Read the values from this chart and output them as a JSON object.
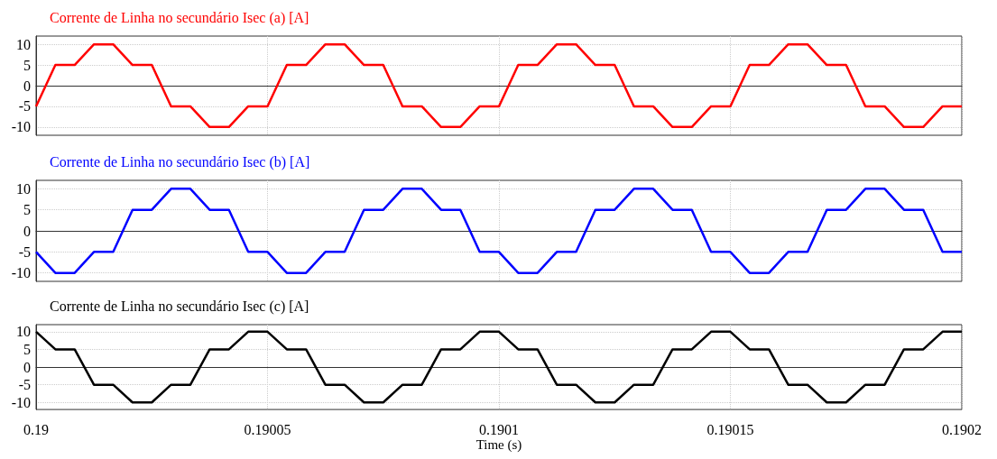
{
  "chart_data": [
    {
      "type": "line",
      "title": "Corrente de Linha no secundário Isec (a) [A]",
      "x": [
        0.19,
        0.1900041667,
        0.1900083333,
        0.1900125,
        0.1900166667,
        0.1900208333,
        0.190025,
        0.1900291667,
        0.1900333333,
        0.1900375,
        0.1900416667,
        0.1900458333,
        0.19005,
        0.1900541667,
        0.1900583333,
        0.1900625,
        0.1900666667,
        0.1900708333,
        0.190075,
        0.1900791667,
        0.1900833333,
        0.1900875,
        0.1900916667,
        0.1900958333,
        0.1901,
        0.1901041667,
        0.1901083333,
        0.1901125,
        0.1901166667,
        0.1901208333,
        0.190125,
        0.1901291667,
        0.1901333333,
        0.1901375,
        0.1901416667,
        0.1901458333,
        0.19015,
        0.1901541667,
        0.1901583333,
        0.1901625,
        0.1901666667,
        0.1901708333,
        0.190175,
        0.1901791667,
        0.1901833333,
        0.1901875,
        0.1901916667,
        0.1901958333,
        0.1902
      ],
      "series": [
        {
          "color": "#ff0000",
          "values": [
            -5,
            5,
            5,
            10,
            10,
            5,
            5,
            -5,
            -5,
            -10,
            -10,
            -5,
            -5,
            5,
            5,
            10,
            10,
            5,
            5,
            -5,
            -5,
            -10,
            -10,
            -5,
            -5,
            5,
            5,
            10,
            10,
            5,
            5,
            -5,
            -5,
            -10,
            -10,
            -5,
            -5,
            5,
            5,
            10,
            10,
            5,
            5,
            -5,
            -5,
            -10,
            -10,
            -5,
            -5
          ]
        }
      ],
      "xlim": [
        0.19,
        0.1902
      ],
      "xticks": [
        0.19,
        0.19005,
        0.1901,
        0.19015,
        0.1902
      ],
      "ylim": [
        -12,
        12
      ],
      "yticks": [
        -10,
        -5,
        0,
        5,
        10
      ],
      "grid": true,
      "tick_labels": "y",
      "marker": "none",
      "line_style": "solid"
    },
    {
      "type": "line",
      "title": "Corrente de Linha no secundário Isec (b) [A]",
      "x": [
        0.19,
        0.1900041667,
        0.1900083333,
        0.1900125,
        0.1900166667,
        0.1900208333,
        0.190025,
        0.1900291667,
        0.1900333333,
        0.1900375,
        0.1900416667,
        0.1900458333,
        0.19005,
        0.1900541667,
        0.1900583333,
        0.1900625,
        0.1900666667,
        0.1900708333,
        0.190075,
        0.1900791667,
        0.1900833333,
        0.1900875,
        0.1900916667,
        0.1900958333,
        0.1901,
        0.1901041667,
        0.1901083333,
        0.1901125,
        0.1901166667,
        0.1901208333,
        0.190125,
        0.1901291667,
        0.1901333333,
        0.1901375,
        0.1901416667,
        0.1901458333,
        0.19015,
        0.1901541667,
        0.1901583333,
        0.1901625,
        0.1901666667,
        0.1901708333,
        0.190175,
        0.1901791667,
        0.1901833333,
        0.1901875,
        0.1901916667,
        0.1901958333,
        0.1902
      ],
      "series": [
        {
          "color": "#0000ff",
          "values": [
            -5,
            -10,
            -10,
            -5,
            -5,
            5,
            5,
            10,
            10,
            5,
            5,
            -5,
            -5,
            -10,
            -10,
            -5,
            -5,
            5,
            5,
            10,
            10,
            5,
            5,
            -5,
            -5,
            -10,
            -10,
            -5,
            -5,
            5,
            5,
            10,
            10,
            5,
            5,
            -5,
            -5,
            -10,
            -10,
            -5,
            -5,
            5,
            5,
            10,
            10,
            5,
            5,
            -5,
            -5
          ]
        }
      ],
      "xlim": [
        0.19,
        0.1902
      ],
      "xticks": [
        0.19,
        0.19005,
        0.1901,
        0.19015,
        0.1902
      ],
      "ylim": [
        -12,
        12
      ],
      "yticks": [
        -10,
        -5,
        0,
        5,
        10
      ],
      "grid": true,
      "tick_labels": "y",
      "marker": "none",
      "line_style": "solid"
    },
    {
      "type": "line",
      "title": "Corrente de Linha no secundário Isec (c) [A]",
      "xlabel": "Time (s)",
      "x": [
        0.19,
        0.1900041667,
        0.1900083333,
        0.1900125,
        0.1900166667,
        0.1900208333,
        0.190025,
        0.1900291667,
        0.1900333333,
        0.1900375,
        0.1900416667,
        0.1900458333,
        0.19005,
        0.1900541667,
        0.1900583333,
        0.1900625,
        0.1900666667,
        0.1900708333,
        0.190075,
        0.1900791667,
        0.1900833333,
        0.1900875,
        0.1900916667,
        0.1900958333,
        0.1901,
        0.1901041667,
        0.1901083333,
        0.1901125,
        0.1901166667,
        0.1901208333,
        0.190125,
        0.1901291667,
        0.1901333333,
        0.1901375,
        0.1901416667,
        0.1901458333,
        0.19015,
        0.1901541667,
        0.1901583333,
        0.1901625,
        0.1901666667,
        0.1901708333,
        0.190175,
        0.1901791667,
        0.1901833333,
        0.1901875,
        0.1901916667,
        0.1901958333,
        0.1902
      ],
      "series": [
        {
          "color": "#000000",
          "values": [
            10,
            5,
            5,
            -5,
            -5,
            -10,
            -10,
            -5,
            -5,
            5,
            5,
            10,
            10,
            5,
            5,
            -5,
            -5,
            -10,
            -10,
            -5,
            -5,
            5,
            5,
            10,
            10,
            5,
            5,
            -5,
            -5,
            -10,
            -10,
            -5,
            -5,
            5,
            5,
            10,
            10,
            5,
            5,
            -5,
            -5,
            -10,
            -10,
            -5,
            -5,
            5,
            5,
            10,
            10
          ]
        }
      ],
      "xlim": [
        0.19,
        0.1902
      ],
      "xticks": [
        0.19,
        0.19005,
        0.1901,
        0.19015,
        0.1902
      ],
      "ylim": [
        -12,
        12
      ],
      "yticks": [
        -10,
        -5,
        0,
        5,
        10
      ],
      "grid": true,
      "marker": "none",
      "line_style": "solid"
    }
  ]
}
